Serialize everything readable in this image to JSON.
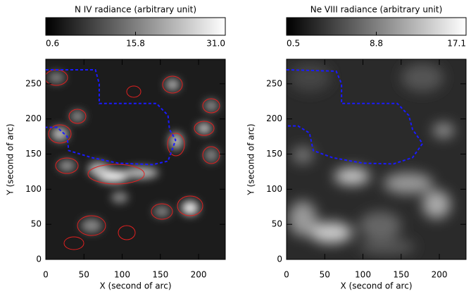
{
  "chart_data": [
    {
      "type": "heatmap",
      "title": "N IV radiance (arbitrary unit)",
      "clim": [
        0.6,
        31
      ],
      "cticks": [
        0.6,
        15.8,
        {
          "value": 31,
          "label": "31.0"
        }
      ],
      "xlabel": "X (second of arc)",
      "ylabel": "Y (second of arc)",
      "xlim": [
        0,
        235
      ],
      "ylim": [
        0,
        285
      ],
      "xticks": [
        0,
        50,
        100,
        150,
        200
      ],
      "yticks": [
        0,
        50,
        100,
        150,
        200,
        250
      ],
      "contours": true,
      "contour_color": "#e02020",
      "boundary_color": "#1a1aff",
      "boundary": {
        "x": [
          0,
          65,
          70,
          70,
          145,
          160,
          162,
          170,
          160,
          140,
          95,
          60,
          30,
          28,
          15,
          0
        ],
        "y": [
          270,
          270,
          250,
          222,
          222,
          205,
          185,
          170,
          140,
          135,
          137,
          145,
          155,
          175,
          188,
          188
        ]
      }
    },
    {
      "type": "heatmap",
      "title": "Ne VIII radiance (arbitrary unit)",
      "clim": [
        0.5,
        17.1
      ],
      "cticks": [
        0.5,
        8.8,
        17.1
      ],
      "xlabel": "X (second of arc)",
      "ylabel": "Y (second of arc)",
      "xlim": [
        0,
        235
      ],
      "ylim": [
        0,
        285
      ],
      "xticks": [
        0,
        50,
        100,
        150,
        200
      ],
      "yticks": [
        0,
        50,
        100,
        150,
        200,
        250
      ],
      "contours": false,
      "boundary_color": "#1a1aff",
      "boundary": {
        "x": [
          0,
          65,
          72,
          72,
          145,
          160,
          165,
          178,
          165,
          140,
          100,
          60,
          35,
          30,
          15,
          0
        ],
        "y": [
          270,
          268,
          250,
          222,
          222,
          205,
          185,
          165,
          145,
          136,
          137,
          145,
          155,
          180,
          190,
          190
        ]
      }
    }
  ]
}
